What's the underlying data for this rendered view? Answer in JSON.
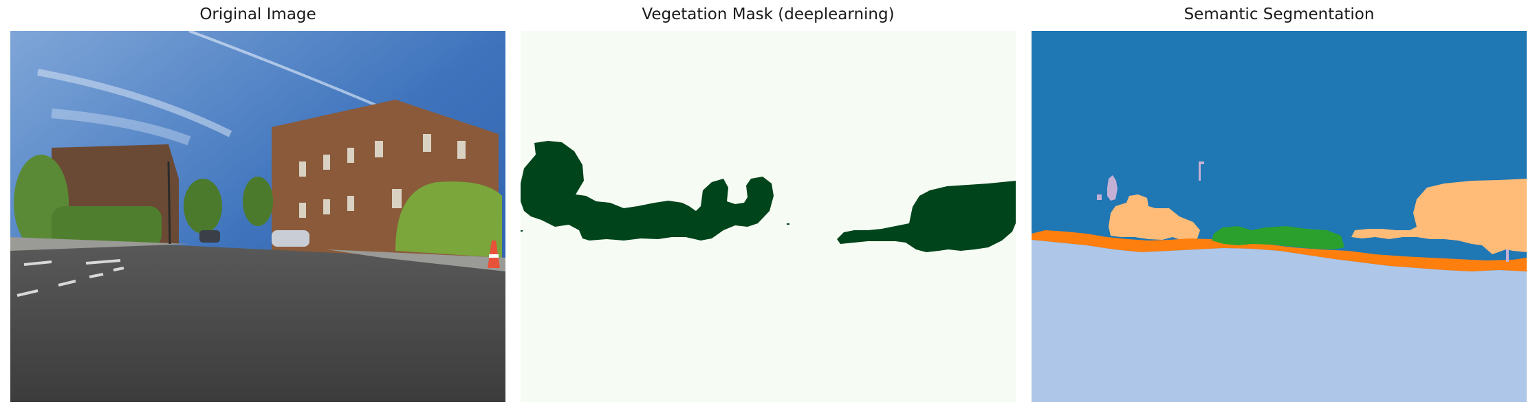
{
  "panels": [
    {
      "title": "Original Image"
    },
    {
      "title": "Vegetation Mask (deeplearning)"
    },
    {
      "title": "Semantic Segmentation"
    }
  ],
  "colors": {
    "sky": "#3d6fb5",
    "road": "#4a4a4a",
    "brick": "#8a5a3a",
    "foliage": "#5f8f35",
    "mask_background": "#f6fbf3",
    "mask_vegetation": "#00441b",
    "seg_sky": "#1f77b4",
    "seg_road": "#aec7e8",
    "seg_building": "#ffbb78",
    "seg_sidewalk": "#ff7f0e",
    "seg_vegetation": "#2ca02c",
    "seg_pole": "#c5b0d5"
  }
}
